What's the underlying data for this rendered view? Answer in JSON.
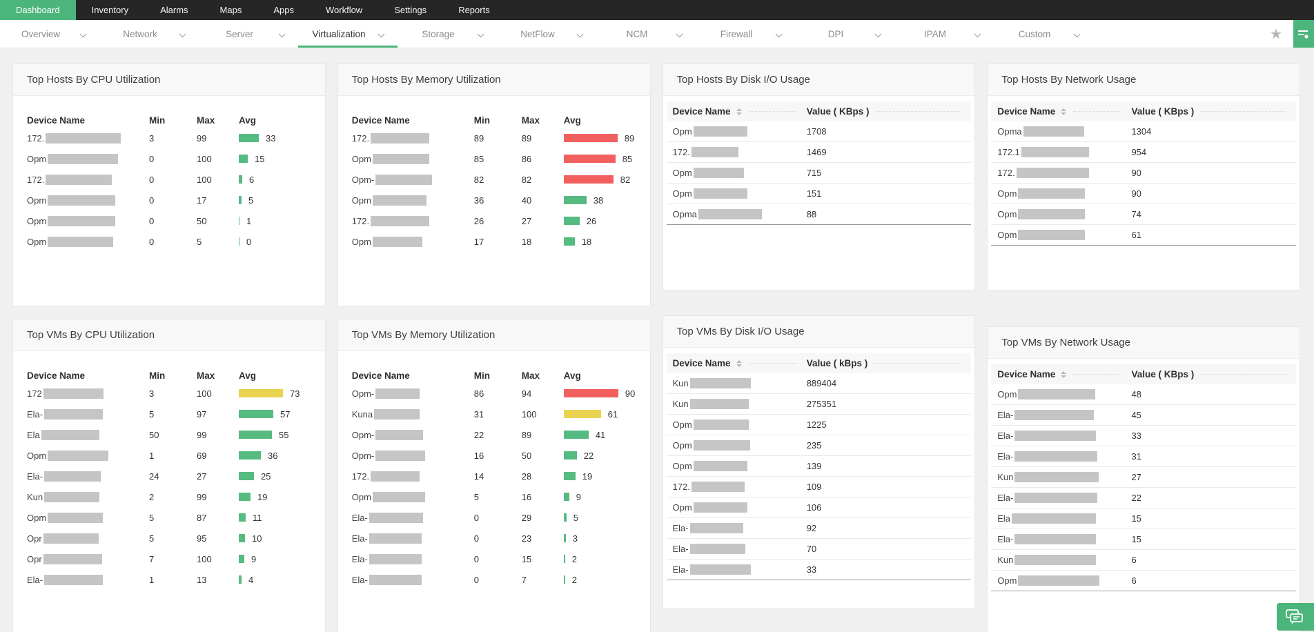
{
  "colors": {
    "accent_green": "#4cb57c",
    "bar_green": "#56bb80",
    "bar_red": "#f25f5f",
    "bar_yellow": "#e9d34f",
    "topnav_bg": "#262626",
    "page_bg": "#f0f0f0",
    "mask_gray": "#c5c5c5"
  },
  "topnav": {
    "items": [
      {
        "label": "Dashboard",
        "active": true
      },
      {
        "label": "Inventory"
      },
      {
        "label": "Alarms"
      },
      {
        "label": "Maps"
      },
      {
        "label": "Apps"
      },
      {
        "label": "Workflow"
      },
      {
        "label": "Settings"
      },
      {
        "label": "Reports"
      }
    ]
  },
  "dashtabs": {
    "items": [
      {
        "label": "Overview"
      },
      {
        "label": "Network"
      },
      {
        "label": "Server"
      },
      {
        "label": "Virtualization",
        "active": true
      },
      {
        "label": "Storage"
      },
      {
        "label": "NetFlow"
      },
      {
        "label": "NCM"
      },
      {
        "label": "Firewall"
      },
      {
        "label": "DPI"
      },
      {
        "label": "IPAM"
      },
      {
        "label": "Custom"
      }
    ],
    "star_icon": "★"
  },
  "widgets": {
    "hosts_cpu": {
      "title": "Top Hosts By CPU Utilization",
      "type": "bars",
      "columns": [
        "Device Name",
        "Min",
        "Max",
        "Avg"
      ],
      "rows": [
        {
          "prefix": "172.",
          "mask": 109,
          "min": 3,
          "max": 99,
          "avg": 33,
          "color": "green"
        },
        {
          "prefix": "Opm",
          "mask": 102,
          "min": 0,
          "max": 100,
          "avg": 15,
          "color": "green"
        },
        {
          "prefix": "172.",
          "mask": 96,
          "min": 0,
          "max": 100,
          "avg": 6,
          "color": "green"
        },
        {
          "prefix": "Opm",
          "mask": 98,
          "min": 0,
          "max": 17,
          "avg": 5,
          "color": "green"
        },
        {
          "prefix": "Opm",
          "mask": 98,
          "min": 0,
          "max": 50,
          "avg": 1,
          "color": "green"
        },
        {
          "prefix": "Opm",
          "mask": 95,
          "min": 0,
          "max": 5,
          "avg": 0,
          "color": "green"
        }
      ]
    },
    "hosts_mem": {
      "title": "Top Hosts By Memory Utilization",
      "type": "bars",
      "columns": [
        "Device Name",
        "Min",
        "Max",
        "Avg"
      ],
      "rows": [
        {
          "prefix": "172.",
          "mask": 85,
          "min": 89,
          "max": 89,
          "avg": 89,
          "color": "red"
        },
        {
          "prefix": "Opm",
          "mask": 82,
          "min": 85,
          "max": 86,
          "avg": 85,
          "color": "red"
        },
        {
          "prefix": "Opm-",
          "mask": 82,
          "min": 82,
          "max": 82,
          "avg": 82,
          "color": "red"
        },
        {
          "prefix": "Opm",
          "mask": 78,
          "min": 36,
          "max": 40,
          "avg": 38,
          "color": "green"
        },
        {
          "prefix": "172.",
          "mask": 85,
          "min": 26,
          "max": 27,
          "avg": 26,
          "color": "green"
        },
        {
          "prefix": "Opm",
          "mask": 72,
          "min": 17,
          "max": 18,
          "avg": 18,
          "color": "green"
        }
      ]
    },
    "hosts_disk": {
      "title": "Top Hosts By Disk I/O Usage",
      "type": "table",
      "columns": [
        "Device Name",
        "Value ( KBps )"
      ],
      "rows": [
        {
          "prefix": "Opm",
          "mask": 78,
          "value": 1708
        },
        {
          "prefix": "172.",
          "mask": 68,
          "value": 1469
        },
        {
          "prefix": "Opm",
          "mask": 73,
          "value": 715
        },
        {
          "prefix": "Opm",
          "mask": 78,
          "value": 151
        },
        {
          "prefix": "Opma",
          "mask": 92,
          "value": 88
        }
      ]
    },
    "hosts_net": {
      "title": "Top Hosts By Network Usage",
      "type": "table",
      "columns": [
        "Device Name",
        "Value ( KBps )"
      ],
      "rows": [
        {
          "prefix": "Opma",
          "mask": 88,
          "value": 1304
        },
        {
          "prefix": "172.1",
          "mask": 98,
          "value": 954
        },
        {
          "prefix": "172.",
          "mask": 105,
          "value": 90
        },
        {
          "prefix": "Opm",
          "mask": 97,
          "value": 90
        },
        {
          "prefix": "Opm",
          "mask": 97,
          "value": 74
        },
        {
          "prefix": "Opm",
          "mask": 97,
          "value": 61
        }
      ]
    },
    "vms_cpu": {
      "title": "Top VMs By CPU Utilization",
      "type": "bars",
      "columns": [
        "Device Name",
        "Min",
        "Max",
        "Avg"
      ],
      "rows": [
        {
          "prefix": "172",
          "mask": 87,
          "min": 3,
          "max": 100,
          "avg": 73,
          "color": "yellow"
        },
        {
          "prefix": "Ela-",
          "mask": 85,
          "min": 5,
          "max": 97,
          "avg": 57,
          "color": "green"
        },
        {
          "prefix": "Ela",
          "mask": 84,
          "min": 50,
          "max": 99,
          "avg": 55,
          "color": "green"
        },
        {
          "prefix": "Opm",
          "mask": 88,
          "min": 1,
          "max": 69,
          "avg": 36,
          "color": "green"
        },
        {
          "prefix": "Ela-",
          "mask": 82,
          "min": 24,
          "max": 27,
          "avg": 25,
          "color": "green"
        },
        {
          "prefix": "Kun",
          "mask": 80,
          "min": 2,
          "max": 99,
          "avg": 19,
          "color": "green"
        },
        {
          "prefix": "Opm",
          "mask": 80,
          "min": 5,
          "max": 87,
          "avg": 11,
          "color": "green"
        },
        {
          "prefix": "Opr",
          "mask": 80,
          "min": 5,
          "max": 95,
          "avg": 10,
          "color": "green"
        },
        {
          "prefix": "Opr",
          "mask": 85,
          "min": 7,
          "max": 100,
          "avg": 9,
          "color": "green"
        },
        {
          "prefix": "Ela-",
          "mask": 85,
          "min": 1,
          "max": 13,
          "avg": 4,
          "color": "green"
        }
      ]
    },
    "vms_mem": {
      "title": "Top VMs By Memory Utilization",
      "type": "bars",
      "columns": [
        "Device Name",
        "Min",
        "Max",
        "Avg"
      ],
      "rows": [
        {
          "prefix": "Opm-",
          "mask": 64,
          "min": 86,
          "max": 94,
          "avg": 90,
          "color": "red"
        },
        {
          "prefix": "Kuna",
          "mask": 66,
          "min": 31,
          "max": 100,
          "avg": 61,
          "color": "yellow"
        },
        {
          "prefix": "Opm-",
          "mask": 69,
          "min": 22,
          "max": 89,
          "avg": 41,
          "color": "green"
        },
        {
          "prefix": "Opm-",
          "mask": 72,
          "min": 16,
          "max": 50,
          "avg": 22,
          "color": "green"
        },
        {
          "prefix": "172.",
          "mask": 71,
          "min": 14,
          "max": 28,
          "avg": 19,
          "color": "green"
        },
        {
          "prefix": "Opm",
          "mask": 76,
          "min": 5,
          "max": 16,
          "avg": 9,
          "color": "green"
        },
        {
          "prefix": "Ela-",
          "mask": 78,
          "min": 0,
          "max": 29,
          "avg": 5,
          "color": "green"
        },
        {
          "prefix": "Ela-",
          "mask": 76,
          "min": 0,
          "max": 23,
          "avg": 3,
          "color": "green"
        },
        {
          "prefix": "Ela-",
          "mask": 76,
          "min": 0,
          "max": 15,
          "avg": 2,
          "color": "green"
        },
        {
          "prefix": "Ela-",
          "mask": 76,
          "min": 0,
          "max": 7,
          "avg": 2,
          "color": "green"
        }
      ]
    },
    "vms_disk": {
      "title": "Top VMs By Disk I/O Usage",
      "type": "table",
      "columns": [
        "Device Name",
        "Value ( kBps )"
      ],
      "rows": [
        {
          "prefix": "Kun",
          "mask": 88,
          "value": 889404
        },
        {
          "prefix": "Kun",
          "mask": 85,
          "value": 275351
        },
        {
          "prefix": "Opm",
          "mask": 80,
          "value": 1225
        },
        {
          "prefix": "Opm",
          "mask": 82,
          "value": 235
        },
        {
          "prefix": "Opm",
          "mask": 78,
          "value": 139
        },
        {
          "prefix": "172.",
          "mask": 77,
          "value": 109
        },
        {
          "prefix": "Opm",
          "mask": 78,
          "value": 106
        },
        {
          "prefix": "Ela-",
          "mask": 77,
          "value": 92
        },
        {
          "prefix": "Ela-",
          "mask": 80,
          "value": 70
        },
        {
          "prefix": "Ela-",
          "mask": 88,
          "value": 33
        }
      ]
    },
    "vms_net": {
      "title": "Top VMs By Network Usage",
      "type": "table",
      "columns": [
        "Device Name",
        "Value ( KBps )"
      ],
      "rows": [
        {
          "prefix": "Opm",
          "mask": 112,
          "value": 48
        },
        {
          "prefix": "Ela-",
          "mask": 115,
          "value": 45
        },
        {
          "prefix": "Ela-",
          "mask": 118,
          "value": 33
        },
        {
          "prefix": "Ela-",
          "mask": 120,
          "value": 31
        },
        {
          "prefix": "Kun",
          "mask": 122,
          "value": 27
        },
        {
          "prefix": "Ela-",
          "mask": 120,
          "value": 22
        },
        {
          "prefix": "Ela",
          "mask": 122,
          "value": 15
        },
        {
          "prefix": "Ela-",
          "mask": 118,
          "value": 15
        },
        {
          "prefix": "Kun",
          "mask": 118,
          "value": 6
        },
        {
          "prefix": "Opm",
          "mask": 118,
          "value": 6
        }
      ]
    }
  }
}
